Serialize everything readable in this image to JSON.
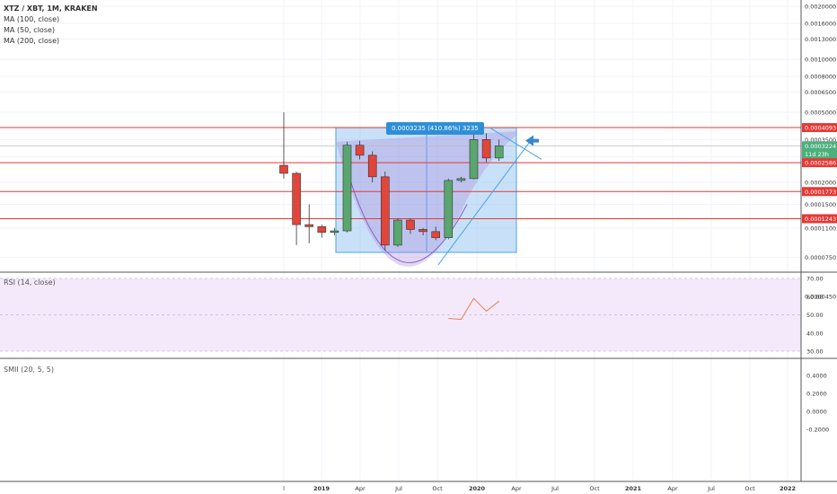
{
  "legend": {
    "symbol": "XTZ / XBT, 1M, KRAKEN",
    "ma_lines": [
      "MA (100, close)",
      "MA (50, close)",
      "MA (200, close)"
    ]
  },
  "rsi_pane": {
    "label": "RSI (14, close)",
    "ticks": [
      "70.00",
      "60.00",
      "50.00",
      "40.00",
      "30.00"
    ]
  },
  "smii_pane": {
    "label": "SMII (20, 5, 5)",
    "ticks": [
      "0.4000",
      "0.2000",
      "0.0000",
      "-0.2000"
    ]
  },
  "measure": {
    "text": "0.0003235 (410.86%) 3235"
  },
  "price_axis_ticks": [
    "0.0020000",
    "0.0016000",
    "0.0013000",
    "0.0010000",
    "0.0008000",
    "0.0006500",
    "0.0005000",
    "0.0003500",
    "0.0002800",
    "0.0002000",
    "0.0001500",
    "0.0001100",
    "0.0000750",
    "0.0000450"
  ],
  "price_tags": [
    {
      "text": "0.0004093",
      "color": "#e53935"
    },
    {
      "text": "0.0003224",
      "color": "#4caf7d"
    },
    {
      "text": "11d 23h",
      "color": "#4caf7d"
    },
    {
      "text": "0.0002586",
      "color": "#e53935"
    },
    {
      "text": "0.0001773",
      "color": "#e53935"
    },
    {
      "text": "0.0001243",
      "color": "#e53935"
    }
  ],
  "time_axis_ticks": [
    "l",
    "2019",
    "Apr",
    "Jul",
    "Oct",
    "2020",
    "Apr",
    "Jul",
    "Oct",
    "2021",
    "Apr",
    "Jul",
    "Oct",
    "2022"
  ],
  "colors": {
    "up": "#5aa66e",
    "down": "#e0463a",
    "hline": "#e53935",
    "rsi": "#f07b52",
    "box": "#4aa3e8"
  },
  "candles": [
    {
      "o": 0.00025,
      "h": 0.0005,
      "l": 0.00021,
      "c": 0.000225
    },
    {
      "o": 0.000225,
      "h": 0.00023,
      "l": 8.8e-05,
      "c": 0.000115
    },
    {
      "o": 0.000115,
      "h": 0.00015,
      "l": 9e-05,
      "c": 0.000112
    },
    {
      "o": 0.000112,
      "h": 0.000115,
      "l": 9.7e-05,
      "c": 0.000104
    },
    {
      "o": 0.000104,
      "h": 0.00011,
      "l": 0.0001,
      "c": 0.000106
    },
    {
      "o": 0.000106,
      "h": 0.00034,
      "l": 0.000104,
      "c": 0.000325
    },
    {
      "o": 0.000325,
      "h": 0.000345,
      "l": 0.00027,
      "c": 0.000285
    },
    {
      "o": 0.000285,
      "h": 0.0003,
      "l": 0.0002,
      "c": 0.000215
    },
    {
      "o": 0.000215,
      "h": 0.00023,
      "l": 8.2e-05,
      "c": 8.8e-05
    },
    {
      "o": 8.8e-05,
      "h": 0.000125,
      "l": 8.6e-05,
      "c": 0.000122
    },
    {
      "o": 0.000122,
      "h": 0.000125,
      "l": 0.000102,
      "c": 0.000108
    },
    {
      "o": 0.000108,
      "h": 0.00011,
      "l": 0.0001,
      "c": 0.000105
    },
    {
      "o": 0.000105,
      "h": 0.000112,
      "l": 9.4e-05,
      "c": 9.7e-05
    },
    {
      "o": 9.7e-05,
      "h": 0.00021,
      "l": 9.5e-05,
      "c": 0.000205
    },
    {
      "o": 0.000205,
      "h": 0.000215,
      "l": 0.0002,
      "c": 0.00021
    },
    {
      "o": 0.00021,
      "h": 0.000395,
      "l": 0.000208,
      "c": 0.00035
    },
    {
      "o": 0.00035,
      "h": 0.00038,
      "l": 0.00026,
      "c": 0.000275
    },
    {
      "o": 0.000275,
      "h": 0.00035,
      "l": 0.000265,
      "c": 0.000322
    }
  ],
  "rsi_values": [
    null,
    null,
    null,
    null,
    null,
    null,
    null,
    null,
    null,
    null,
    null,
    null,
    null,
    48,
    47.5,
    59,
    52,
    57.5
  ],
  "hlines": [
    0.0004093,
    0.0002586,
    0.0001773,
    0.0001243
  ]
}
